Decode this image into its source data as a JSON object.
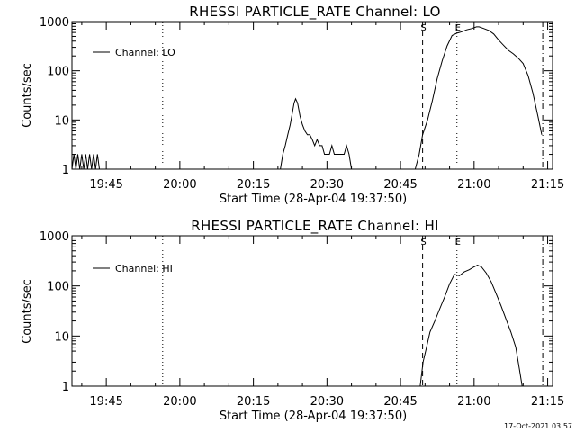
{
  "footer_timestamp": "17-Oct-2021 03:57",
  "chart_data": [
    {
      "type": "line",
      "title": "RHESSI PARTICLE_RATE Channel: LO",
      "xlabel": "Start Time (28-Apr-04 19:37:50)",
      "ylabel": "Counts/sec",
      "yscale": "log",
      "ylim": [
        1,
        1000
      ],
      "y_ticks": [
        "1",
        "10",
        "100",
        "1000"
      ],
      "xlim_minutes": [
        38,
        136
      ],
      "x_ticks": [
        {
          "label": "19:45",
          "m": 45
        },
        {
          "label": "20:00",
          "m": 60
        },
        {
          "label": "20:15",
          "m": 75
        },
        {
          "label": "20:30",
          "m": 90
        },
        {
          "label": "20:45",
          "m": 105
        },
        {
          "label": "21:00",
          "m": 120
        },
        {
          "label": "21:15",
          "m": 135
        }
      ],
      "legend": {
        "label": "Channel: LO",
        "position": "top-left"
      },
      "markers": [
        {
          "m": 56.5,
          "style": "dotted",
          "label": ""
        },
        {
          "m": 109.5,
          "style": "dashed",
          "label": "S"
        },
        {
          "m": 116.5,
          "style": "dotted",
          "label": "E"
        },
        {
          "m": 134.0,
          "style": "dashdot",
          "label": ""
        }
      ],
      "series": [
        {
          "name": "Channel: LO",
          "segments": [
            [
              [
                38,
                1
              ],
              [
                38.4,
                2
              ],
              [
                38.8,
                1
              ],
              [
                39.2,
                2
              ],
              [
                39.6,
                1
              ],
              [
                40,
                2
              ],
              [
                40.4,
                1
              ],
              [
                40.8,
                2
              ],
              [
                41.2,
                1
              ],
              [
                41.6,
                2
              ],
              [
                42,
                1
              ],
              [
                42.4,
                2
              ],
              [
                42.8,
                1
              ],
              [
                43.2,
                2
              ],
              [
                43.6,
                1
              ]
            ],
            [
              [
                80.5,
                1
              ],
              [
                81,
                2
              ],
              [
                81.5,
                3
              ],
              [
                82,
                5
              ],
              [
                82.5,
                8
              ],
              [
                83,
                15
              ],
              [
                83.3,
                22
              ],
              [
                83.6,
                27
              ],
              [
                84,
                22
              ],
              [
                84.5,
                12
              ],
              [
                85,
                8
              ],
              [
                85.5,
                6
              ],
              [
                86,
                5
              ],
              [
                86.5,
                5
              ],
              [
                87,
                4
              ],
              [
                87.5,
                3
              ],
              [
                88,
                4
              ],
              [
                88.5,
                3
              ],
              [
                89,
                3
              ],
              [
                89.5,
                2
              ],
              [
                90,
                2
              ],
              [
                90.5,
                2
              ],
              [
                91,
                3
              ],
              [
                91.5,
                2
              ],
              [
                92,
                2
              ],
              [
                92.5,
                2
              ],
              [
                93,
                2
              ],
              [
                93.5,
                2
              ],
              [
                94,
                3
              ],
              [
                94.5,
                2
              ],
              [
                95,
                1
              ]
            ],
            [
              [
                108,
                1
              ],
              [
                108.8,
                2
              ],
              [
                109.5,
                5
              ],
              [
                110.5,
                10
              ],
              [
                111.5,
                25
              ],
              [
                112.5,
                70
              ],
              [
                113.5,
                160
              ],
              [
                114.5,
                320
              ],
              [
                115.5,
                520
              ],
              [
                116.5,
                580
              ],
              [
                117.5,
                620
              ],
              [
                118.5,
                680
              ],
              [
                119.5,
                720
              ],
              [
                120.5,
                780
              ],
              [
                121,
                780
              ],
              [
                122,
                720
              ],
              [
                123,
                660
              ],
              [
                124,
                560
              ],
              [
                125,
                420
              ],
              [
                126,
                330
              ],
              [
                127,
                260
              ],
              [
                128,
                220
              ],
              [
                129,
                180
              ],
              [
                130,
                140
              ],
              [
                131,
                80
              ],
              [
                132,
                35
              ],
              [
                133,
                12
              ],
              [
                133.8,
                5
              ]
            ]
          ]
        }
      ]
    },
    {
      "type": "line",
      "title": "RHESSI PARTICLE_RATE Channel: HI",
      "xlabel": "Start Time (28-Apr-04 19:37:50)",
      "ylabel": "Counts/sec",
      "yscale": "log",
      "ylim": [
        1,
        1000
      ],
      "y_ticks": [
        "1",
        "10",
        "100",
        "1000"
      ],
      "xlim_minutes": [
        38,
        136
      ],
      "x_ticks": [
        {
          "label": "19:45",
          "m": 45
        },
        {
          "label": "20:00",
          "m": 60
        },
        {
          "label": "20:15",
          "m": 75
        },
        {
          "label": "20:30",
          "m": 90
        },
        {
          "label": "20:45",
          "m": 105
        },
        {
          "label": "21:00",
          "m": 120
        },
        {
          "label": "21:15",
          "m": 135
        }
      ],
      "legend": {
        "label": "Channel: HI",
        "position": "top-left"
      },
      "markers": [
        {
          "m": 56.5,
          "style": "dotted",
          "label": ""
        },
        {
          "m": 109.5,
          "style": "dashed",
          "label": "S"
        },
        {
          "m": 116.5,
          "style": "dotted",
          "label": "E"
        },
        {
          "m": 134.0,
          "style": "dashdot",
          "label": ""
        }
      ],
      "series": [
        {
          "name": "Channel: HI",
          "segments": [
            [
              [
                109,
                1
              ],
              [
                109.6,
                3
              ],
              [
                110.3,
                6
              ],
              [
                111,
                12
              ],
              [
                112,
                20
              ],
              [
                113,
                35
              ],
              [
                114,
                60
              ],
              [
                115,
                110
              ],
              [
                116,
                170
              ],
              [
                117,
                160
              ],
              [
                118,
                190
              ],
              [
                119,
                210
              ],
              [
                120,
                240
              ],
              [
                120.7,
                260
              ],
              [
                121.5,
                240
              ],
              [
                122.5,
                180
              ],
              [
                123.5,
                120
              ],
              [
                124.5,
                70
              ],
              [
                125.5,
                40
              ],
              [
                126.5,
                22
              ],
              [
                127.5,
                12
              ],
              [
                128.5,
                6
              ],
              [
                129.3,
                2
              ],
              [
                129.8,
                1
              ]
            ]
          ]
        }
      ]
    }
  ]
}
